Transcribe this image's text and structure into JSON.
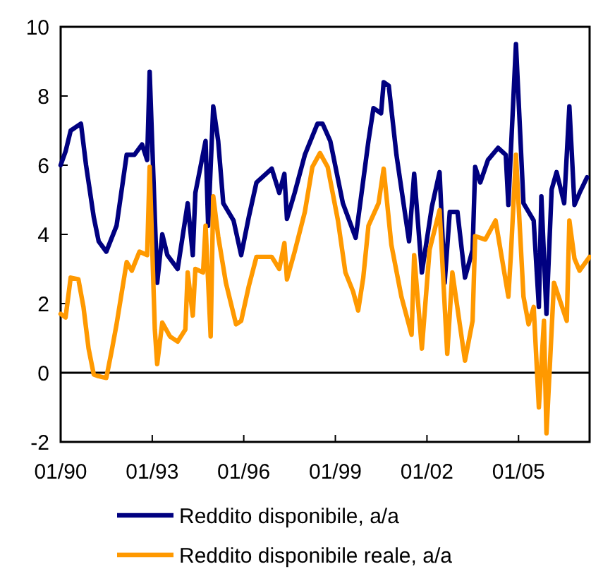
{
  "chart_data": {
    "type": "line",
    "xlim": [
      "1990-01",
      "2007-05"
    ],
    "ylim": [
      -2,
      10
    ],
    "xticks": [
      {
        "value": "1990-01",
        "label": "01/90"
      },
      {
        "value": "1993-01",
        "label": "01/93"
      },
      {
        "value": "1996-01",
        "label": "01/96"
      },
      {
        "value": "1999-01",
        "label": "01/99"
      },
      {
        "value": "2002-01",
        "label": "01/02"
      },
      {
        "value": "2005-01",
        "label": "01/05"
      }
    ],
    "yticks": [
      -2,
      0,
      2,
      4,
      6,
      8,
      10
    ],
    "grid": false,
    "legend": "bottom",
    "marker": "none",
    "line_style": "solid",
    "ref_lines": [
      {
        "axis": "y",
        "value": 0,
        "color": "#000000"
      }
    ],
    "series": [
      {
        "name": "Reddito disponibile, a/a",
        "color": "#000080",
        "x": [
          "1990-01",
          "1990-03",
          "1990-05",
          "1990-09",
          "1990-11",
          "1991-02",
          "1991-04",
          "1991-07",
          "1991-11",
          "1992-03",
          "1992-06",
          "1992-09",
          "1992-11",
          "1992-12",
          "1993-03",
          "1993-05",
          "1993-07",
          "1993-11",
          "1994-03",
          "1994-05",
          "1994-06",
          "1994-10",
          "1994-11",
          "1995-01",
          "1995-03",
          "1995-05",
          "1995-09",
          "1995-12",
          "1996-03",
          "1996-06",
          "1996-12",
          "1997-03",
          "1997-05",
          "1997-06",
          "1997-09",
          "1998-01",
          "1998-06",
          "1998-08",
          "1998-11",
          "1999-04",
          "1999-09",
          "2000-02",
          "2000-04",
          "2000-07",
          "2000-08",
          "2000-10",
          "2001-01",
          "2001-06",
          "2001-08",
          "2001-11",
          "2002-03",
          "2002-06",
          "2002-08",
          "2002-10",
          "2003-01",
          "2003-04",
          "2003-07",
          "2003-08",
          "2003-10",
          "2004-01",
          "2004-05",
          "2004-08",
          "2004-09",
          "2004-10",
          "2004-12",
          "2005-03",
          "2005-07",
          "2005-09",
          "2005-10",
          "2005-12",
          "2006-02",
          "2006-04",
          "2006-07",
          "2006-09",
          "2006-11",
          "2007-01",
          "2007-04"
        ],
        "values": [
          6.0,
          6.4,
          7.0,
          7.2,
          6.0,
          4.5,
          3.8,
          3.5,
          4.25,
          6.3,
          6.3,
          6.6,
          6.15,
          8.7,
          2.6,
          4.0,
          3.4,
          3.0,
          4.9,
          3.4,
          5.2,
          6.7,
          4.25,
          7.7,
          6.7,
          4.9,
          4.4,
          3.4,
          4.5,
          5.5,
          5.9,
          5.2,
          5.75,
          4.45,
          5.2,
          6.3,
          7.2,
          7.2,
          6.7,
          4.9,
          3.9,
          6.7,
          7.65,
          7.5,
          8.4,
          8.3,
          6.3,
          3.8,
          5.75,
          2.9,
          4.8,
          5.8,
          2.6,
          4.65,
          4.65,
          2.75,
          3.55,
          5.95,
          5.5,
          6.15,
          6.5,
          6.3,
          4.85,
          6.4,
          9.5,
          4.9,
          4.4,
          1.9,
          5.1,
          1.7,
          5.3,
          5.8,
          4.9,
          7.7,
          4.85,
          5.2,
          5.65
        ]
      },
      {
        "name": "Reddito disponibile reale, a/a",
        "color": "#ff9900",
        "x": [
          "1990-01",
          "1990-03",
          "1990-05",
          "1990-08",
          "1990-10",
          "1990-12",
          "1991-02",
          "1991-04",
          "1991-07",
          "1991-09",
          "1991-11",
          "1992-03",
          "1992-05",
          "1992-08",
          "1992-11",
          "1992-12",
          "1993-02",
          "1993-03",
          "1993-05",
          "1993-08",
          "1993-11",
          "1994-02",
          "1994-03",
          "1994-05",
          "1994-06",
          "1994-09",
          "1994-10",
          "1994-12",
          "1995-01",
          "1995-03",
          "1995-06",
          "1995-10",
          "1995-12",
          "1996-03",
          "1996-06",
          "1996-12",
          "1997-03",
          "1997-05",
          "1997-06",
          "1997-09",
          "1998-01",
          "1998-04",
          "1998-07",
          "1998-10",
          "1999-02",
          "1999-05",
          "1999-08",
          "1999-10",
          "1999-12",
          "2000-02",
          "2000-06",
          "2000-08",
          "2000-11",
          "2001-03",
          "2001-07",
          "2001-08",
          "2001-11",
          "2002-02",
          "2002-06",
          "2002-09",
          "2002-11",
          "2003-04",
          "2003-07",
          "2003-08",
          "2003-12",
          "2004-04",
          "2004-09",
          "2004-10",
          "2004-12",
          "2005-03",
          "2005-05",
          "2005-07",
          "2005-09",
          "2005-11",
          "2005-12",
          "2006-03",
          "2006-08",
          "2006-09",
          "2006-11",
          "2007-01",
          "2007-05"
        ],
        "values": [
          1.7,
          1.6,
          2.75,
          2.7,
          1.9,
          0.7,
          -0.05,
          -0.1,
          -0.15,
          0.6,
          1.4,
          3.2,
          2.95,
          3.5,
          3.4,
          5.95,
          1.25,
          0.25,
          1.45,
          1.05,
          0.9,
          1.25,
          2.9,
          1.65,
          3.0,
          2.9,
          4.25,
          1.05,
          5.1,
          3.95,
          2.6,
          1.4,
          1.5,
          2.5,
          3.35,
          3.35,
          3.0,
          3.75,
          2.7,
          3.5,
          4.65,
          5.95,
          6.35,
          5.95,
          4.4,
          2.9,
          2.35,
          1.8,
          2.75,
          4.25,
          4.9,
          5.9,
          3.7,
          2.2,
          1.1,
          3.4,
          0.7,
          3.55,
          4.7,
          0.55,
          2.9,
          0.35,
          1.5,
          3.95,
          3.85,
          4.4,
          2.2,
          3.4,
          6.3,
          2.2,
          1.4,
          1.9,
          -1.0,
          1.5,
          -1.75,
          2.6,
          1.5,
          4.4,
          3.3,
          2.95,
          3.35
        ]
      }
    ]
  }
}
